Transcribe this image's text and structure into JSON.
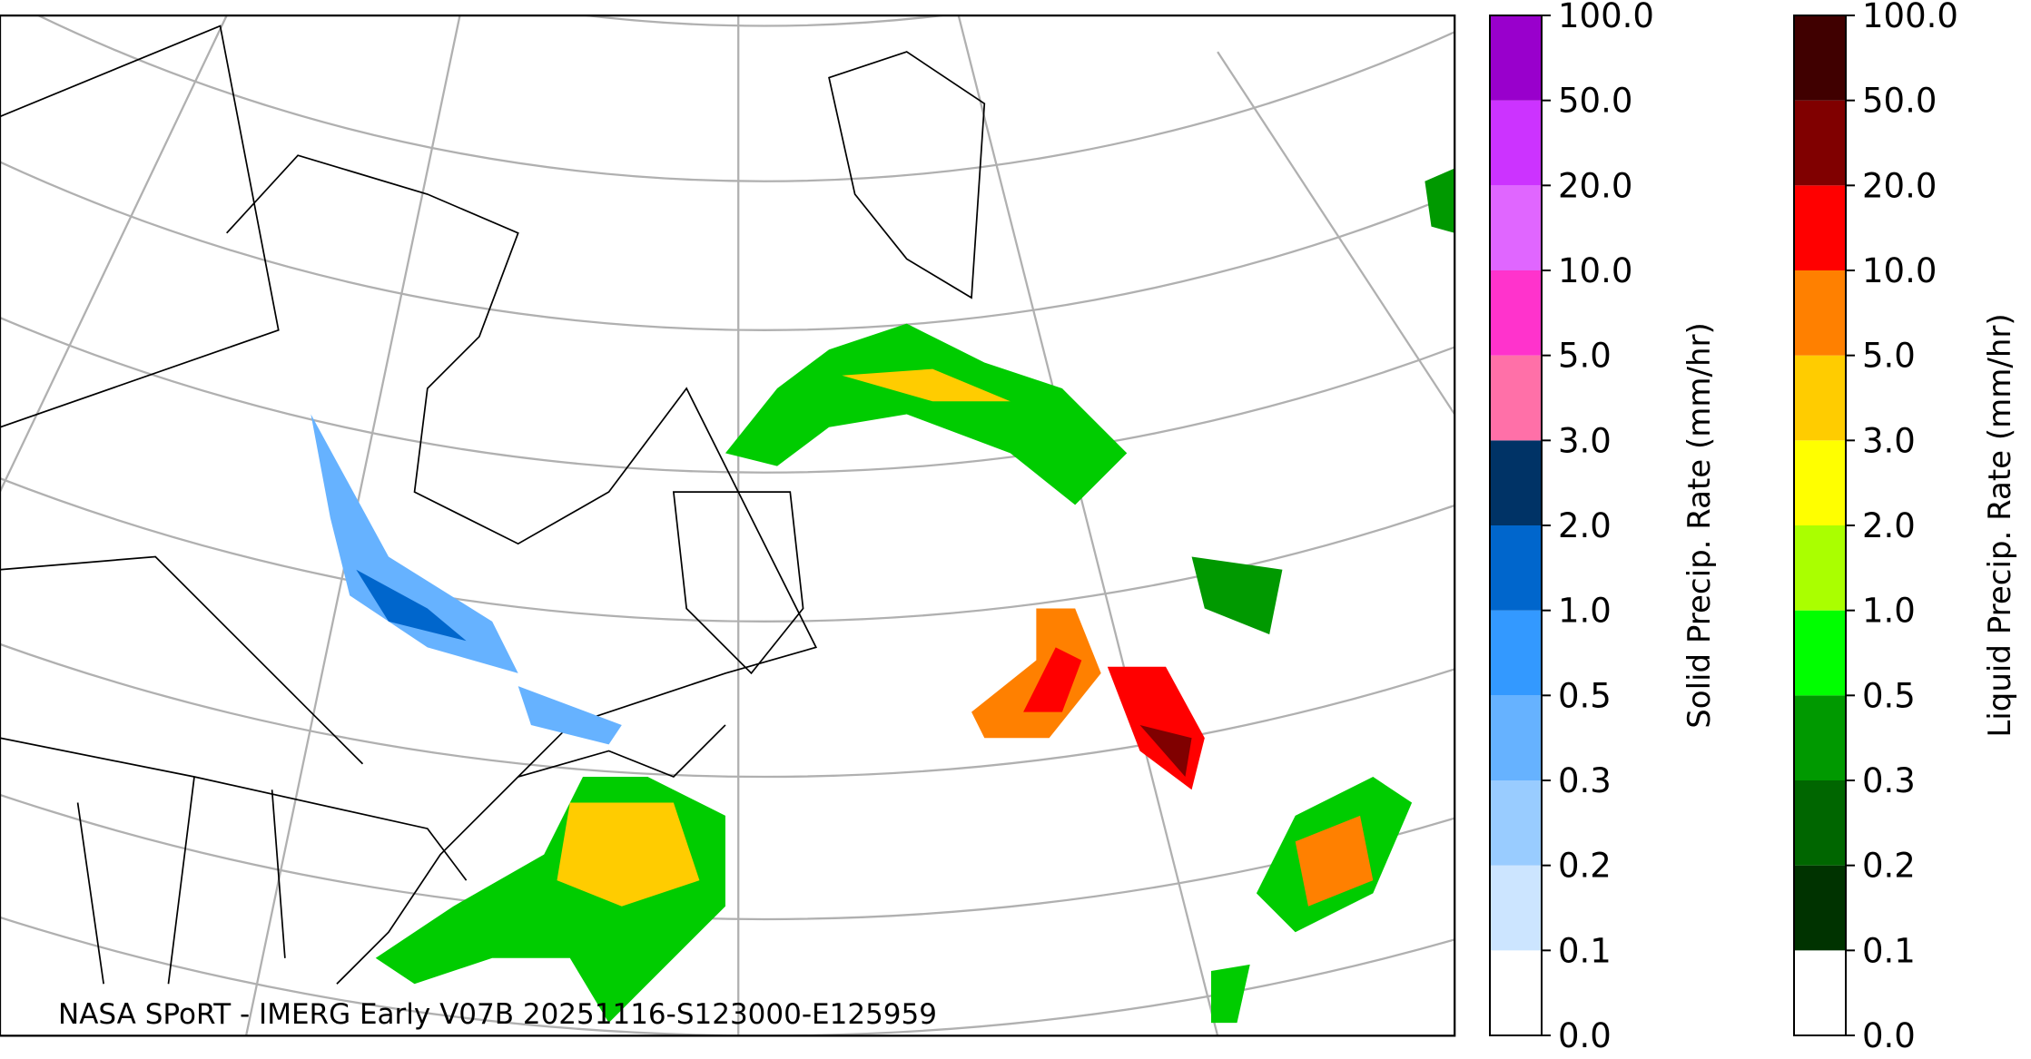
{
  "credit": "NASA SPoRT - IMERG Early V07B 20251116-S123000-E125959",
  "colorbars": [
    {
      "label": "Solid Precip. Rate (mm/hr)",
      "colors": [
        "#ffffff",
        "#cce5ff",
        "#99ccff",
        "#66b2ff",
        "#3399ff",
        "#0066cc",
        "#003366",
        "#ff70a8",
        "#ff33cc",
        "#e066ff",
        "#cc33ff",
        "#9900cc"
      ],
      "ticks": [
        {
          "value": 0,
          "label": "0.0"
        },
        {
          "value": 0.1,
          "label": "0.1"
        },
        {
          "value": 0.2,
          "label": "0.2"
        },
        {
          "value": 0.3,
          "label": "0.3"
        },
        {
          "value": 0.5,
          "label": "0.5"
        },
        {
          "value": 1,
          "label": "1.0"
        },
        {
          "value": 2,
          "label": "2.0"
        },
        {
          "value": 3,
          "label": "3.0"
        },
        {
          "value": 5,
          "label": "5.0"
        },
        {
          "value": 10,
          "label": "10.0"
        },
        {
          "value": 20,
          "label": "20.0"
        },
        {
          "value": 50,
          "label": "50.0"
        },
        {
          "value": 100,
          "label": "100.0"
        }
      ]
    },
    {
      "label": "Liquid Precip. Rate (mm/hr)",
      "colors": [
        "#ffffff",
        "#003300",
        "#006600",
        "#009900",
        "#00ff00",
        "#aaff00",
        "#ffff00",
        "#ffcc00",
        "#ff8000",
        "#ff0000",
        "#800000",
        "#400000"
      ],
      "ticks": [
        {
          "value": 0,
          "label": "0.0"
        },
        {
          "value": 0.1,
          "label": "0.1"
        },
        {
          "value": 0.2,
          "label": "0.2"
        },
        {
          "value": 0.3,
          "label": "0.3"
        },
        {
          "value": 0.5,
          "label": "0.5"
        },
        {
          "value": 1,
          "label": "1.0"
        },
        {
          "value": 2,
          "label": "2.0"
        },
        {
          "value": 3,
          "label": "3.0"
        },
        {
          "value": 5,
          "label": "5.0"
        },
        {
          "value": 10,
          "label": "10.0"
        },
        {
          "value": 20,
          "label": "20.0"
        },
        {
          "value": 50,
          "label": "50.0"
        },
        {
          "value": 100,
          "label": "100.0"
        }
      ]
    }
  ]
}
